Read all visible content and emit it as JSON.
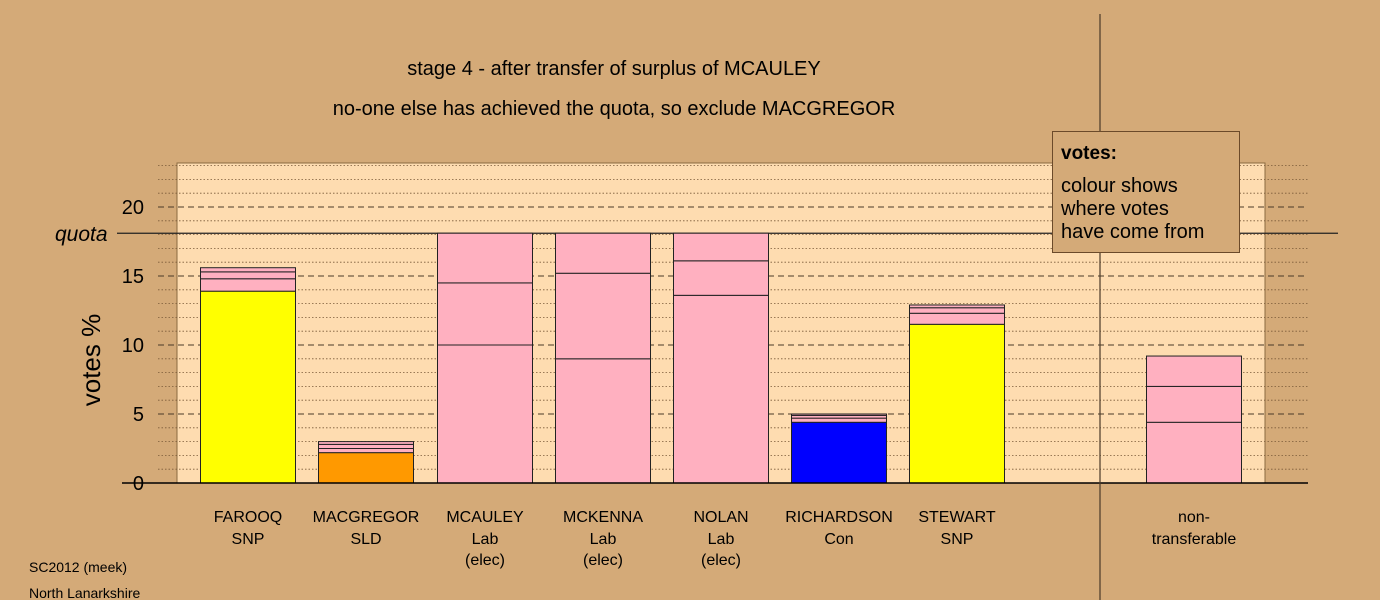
{
  "title": "stage 4 - after transfer of surplus of MCAULEY",
  "subtitle": "no-one else has achieved the quota, so exclude MACGREGOR",
  "footer": {
    "line1": "SC2012 (meek)",
    "line2": "North Lanarkshire"
  },
  "legend": {
    "heading": "votes:",
    "lines": [
      "colour shows",
      "where votes",
      "have come from"
    ]
  },
  "colors": {
    "background": "#d4aa78",
    "plot_area": "#fedcb0",
    "SNP": "#ffff00",
    "SLD": "#ff9900",
    "Lab": "#ffb0c0",
    "Con": "#0000ff"
  },
  "chart_data": {
    "type": "bar",
    "stacked": true,
    "ylabel": "votes %",
    "ylim": [
      0,
      23
    ],
    "yticks": [
      0,
      5,
      10,
      15,
      20
    ],
    "quota": {
      "value": 18.1,
      "label": "quota"
    },
    "grid": true,
    "legend_position": "top-right",
    "categories": [
      {
        "name": "FAROOQ",
        "party": "SNP",
        "note": "",
        "segments": [
          {
            "value": 13.9,
            "color": "SNP"
          },
          {
            "value": 0.9,
            "color": "Lab"
          },
          {
            "value": 0.5,
            "color": "Lab"
          },
          {
            "value": 0.3,
            "color": "Lab"
          }
        ]
      },
      {
        "name": "MACGREGOR",
        "party": "SLD",
        "note": "",
        "segments": [
          {
            "value": 2.2,
            "color": "SLD"
          },
          {
            "value": 0.3,
            "color": "Lab"
          },
          {
            "value": 0.3,
            "color": "Lab"
          },
          {
            "value": 0.2,
            "color": "Lab"
          }
        ]
      },
      {
        "name": "MCAULEY",
        "party": "Lab",
        "note": "(elec)",
        "segments": [
          {
            "value": 10.0,
            "color": "Lab"
          },
          {
            "value": 4.5,
            "color": "Lab"
          },
          {
            "value": 3.6,
            "color": "Lab"
          }
        ]
      },
      {
        "name": "MCKENNA",
        "party": "Lab",
        "note": "(elec)",
        "segments": [
          {
            "value": 9.0,
            "color": "Lab"
          },
          {
            "value": 6.2,
            "color": "Lab"
          },
          {
            "value": 2.9,
            "color": "Lab"
          }
        ]
      },
      {
        "name": "NOLAN",
        "party": "Lab",
        "note": "(elec)",
        "segments": [
          {
            "value": 13.6,
            "color": "Lab"
          },
          {
            "value": 2.5,
            "color": "Lab"
          },
          {
            "value": 2.0,
            "color": "Lab"
          }
        ]
      },
      {
        "name": "RICHARDSON",
        "party": "Con",
        "note": "",
        "segments": [
          {
            "value": 4.4,
            "color": "Con"
          },
          {
            "value": 0.3,
            "color": "Lab"
          },
          {
            "value": 0.2,
            "color": "Lab"
          },
          {
            "value": 0.1,
            "color": "Lab"
          }
        ]
      },
      {
        "name": "STEWART",
        "party": "SNP",
        "note": "",
        "segments": [
          {
            "value": 11.5,
            "color": "SNP"
          },
          {
            "value": 0.8,
            "color": "Lab"
          },
          {
            "value": 0.4,
            "color": "Lab"
          },
          {
            "value": 0.2,
            "color": "Lab"
          }
        ]
      }
    ],
    "nontransferable": {
      "label_line1": "non-",
      "label_line2": "transferable",
      "segments": [
        {
          "value": 4.4,
          "color": "Lab"
        },
        {
          "value": 2.6,
          "color": "Lab"
        },
        {
          "value": 2.2,
          "color": "Lab"
        }
      ]
    }
  }
}
